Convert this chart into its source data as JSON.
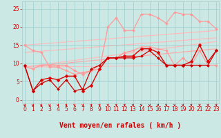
{
  "bg_color": "#cce8e4",
  "grid_color": "#99cccc",
  "xlabel": "Vent moyen/en rafales ( km/h )",
  "xlabel_color": "#cc0000",
  "xlabel_fontsize": 7,
  "xticks": [
    0,
    1,
    2,
    3,
    4,
    5,
    6,
    7,
    8,
    9,
    10,
    11,
    12,
    13,
    14,
    15,
    16,
    17,
    18,
    19,
    20,
    21,
    22,
    23
  ],
  "yticks": [
    0,
    5,
    10,
    15,
    20,
    25
  ],
  "ylim": [
    -1,
    27
  ],
  "xlim": [
    -0.3,
    23.3
  ],
  "tick_label_color": "#cc0000",
  "tick_fontsize": 5.5,
  "lines": [
    {
      "x": [
        0,
        23
      ],
      "y": [
        15.0,
        19.0
      ],
      "color": "#ffbbbb",
      "linewidth": 0.9,
      "marker": null,
      "zorder": 1
    },
    {
      "x": [
        0,
        23
      ],
      "y": [
        13.0,
        17.0
      ],
      "color": "#ffbbbb",
      "linewidth": 0.9,
      "marker": null,
      "zorder": 1
    },
    {
      "x": [
        0,
        23
      ],
      "y": [
        9.0,
        16.0
      ],
      "color": "#ffbbbb",
      "linewidth": 0.9,
      "marker": null,
      "zorder": 1
    },
    {
      "x": [
        0,
        23
      ],
      "y": [
        9.0,
        14.0
      ],
      "color": "#ffaaaa",
      "linewidth": 0.9,
      "marker": null,
      "zorder": 1
    },
    {
      "x": [
        0,
        23
      ],
      "y": [
        9.0,
        9.5
      ],
      "color": "#ffbbbb",
      "linewidth": 0.9,
      "marker": null,
      "zorder": 1
    },
    {
      "x": [
        0,
        1,
        2,
        3,
        4,
        5,
        6,
        7,
        8,
        9,
        10,
        11,
        12,
        13,
        14,
        15,
        16,
        17,
        18,
        19,
        20,
        21,
        22,
        23
      ],
      "y": [
        15.0,
        13.5,
        13.0,
        9.0,
        9.0,
        8.0,
        7.0,
        7.5,
        8.0,
        8.5,
        20.0,
        22.5,
        19.0,
        19.0,
        23.5,
        23.5,
        22.5,
        21.0,
        24.0,
        23.5,
        23.5,
        21.5,
        21.5,
        19.5
      ],
      "color": "#ff9999",
      "linewidth": 0.9,
      "marker": "D",
      "markersize": 2.0,
      "zorder": 2
    },
    {
      "x": [
        0,
        1,
        2,
        3,
        4,
        5,
        6,
        7,
        8,
        9,
        10,
        11,
        12,
        13,
        14,
        15,
        16,
        17,
        18,
        19,
        20,
        21,
        22,
        23
      ],
      "y": [
        9.0,
        8.5,
        9.5,
        9.5,
        9.5,
        9.5,
        8.0,
        7.0,
        8.0,
        9.5,
        11.5,
        11.5,
        13.0,
        13.5,
        14.5,
        14.5,
        14.0,
        13.5,
        9.5,
        11.5,
        9.5,
        13.5,
        9.5,
        9.5
      ],
      "color": "#ff9999",
      "linewidth": 0.9,
      "marker": "D",
      "markersize": 2.0,
      "zorder": 2
    },
    {
      "x": [
        0,
        1,
        2,
        3,
        4,
        5,
        6,
        7,
        8,
        9,
        10,
        11,
        12,
        13,
        14,
        15,
        16,
        17,
        18,
        19,
        20,
        21,
        22,
        23
      ],
      "y": [
        9.5,
        2.5,
        5.5,
        6.0,
        5.5,
        6.5,
        6.5,
        2.5,
        4.0,
        8.5,
        11.5,
        11.5,
        12.0,
        12.0,
        14.0,
        14.0,
        13.0,
        9.5,
        9.5,
        9.5,
        10.5,
        15.0,
        10.5,
        13.5
      ],
      "color": "#dd0000",
      "linewidth": 1.0,
      "marker": "D",
      "markersize": 2.5,
      "zorder": 3
    },
    {
      "x": [
        0,
        1,
        2,
        3,
        4,
        5,
        6,
        7,
        8,
        9,
        10,
        11,
        12,
        13,
        14,
        15,
        16,
        17,
        18,
        19,
        20,
        21,
        22,
        23
      ],
      "y": [
        9.5,
        2.5,
        4.5,
        5.5,
        3.0,
        5.5,
        2.5,
        3.0,
        8.5,
        9.5,
        11.5,
        11.5,
        11.5,
        11.5,
        12.0,
        13.5,
        11.5,
        9.5,
        9.5,
        9.5,
        9.5,
        9.5,
        9.5,
        13.5
      ],
      "color": "#cc0000",
      "linewidth": 0.9,
      "marker": "D",
      "markersize": 2.0,
      "zorder": 3
    }
  ],
  "arrow_angles": [
    90,
    80,
    70,
    60,
    50,
    45,
    40,
    35,
    30,
    25,
    20,
    18,
    16,
    15,
    14,
    13,
    12,
    11,
    10,
    10,
    10,
    10,
    10,
    10
  ],
  "arrow_color": "#cc0000"
}
